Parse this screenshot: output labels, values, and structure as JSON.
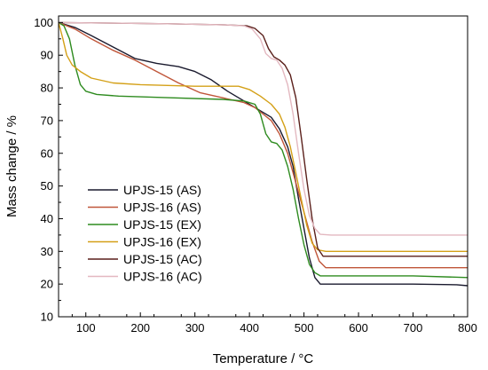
{
  "chart_data": {
    "type": "line",
    "title": "",
    "xlabel": "Temperature / °C",
    "ylabel": "Mass change / %",
    "xlim": [
      50,
      800
    ],
    "ylim": [
      10,
      102
    ],
    "xticks": [
      100,
      200,
      300,
      400,
      500,
      600,
      700,
      800
    ],
    "yticks": [
      10,
      20,
      30,
      40,
      50,
      60,
      70,
      80,
      90,
      100
    ],
    "grid": false,
    "legend_position": "lower-left",
    "series": [
      {
        "name": "UPJS-15 (AS)",
        "color": "#1a1a2e",
        "points": [
          [
            50,
            100
          ],
          [
            80,
            98.5
          ],
          [
            110,
            96
          ],
          [
            150,
            92.5
          ],
          [
            190,
            89
          ],
          [
            230,
            87.5
          ],
          [
            270,
            86.5
          ],
          [
            300,
            85
          ],
          [
            330,
            82.5
          ],
          [
            360,
            79
          ],
          [
            390,
            76
          ],
          [
            410,
            74
          ],
          [
            425,
            72.5
          ],
          [
            440,
            71
          ],
          [
            455,
            67.5
          ],
          [
            470,
            62
          ],
          [
            480,
            56
          ],
          [
            490,
            46
          ],
          [
            500,
            37
          ],
          [
            510,
            28
          ],
          [
            520,
            22
          ],
          [
            530,
            20
          ],
          [
            545,
            20
          ],
          [
            600,
            20
          ],
          [
            700,
            20
          ],
          [
            780,
            19.8
          ],
          [
            800,
            19.5
          ]
        ]
      },
      {
        "name": "UPJS-16 (AS)",
        "color": "#c0563a",
        "points": [
          [
            50,
            100
          ],
          [
            80,
            98
          ],
          [
            110,
            95
          ],
          [
            150,
            91.5
          ],
          [
            190,
            88.5
          ],
          [
            230,
            85
          ],
          [
            270,
            81.5
          ],
          [
            310,
            78.5
          ],
          [
            350,
            77
          ],
          [
            390,
            75.5
          ],
          [
            410,
            74
          ],
          [
            425,
            72
          ],
          [
            440,
            70
          ],
          [
            455,
            66
          ],
          [
            470,
            60
          ],
          [
            485,
            51
          ],
          [
            500,
            42
          ],
          [
            515,
            33
          ],
          [
            528,
            27
          ],
          [
            540,
            25
          ],
          [
            600,
            25
          ],
          [
            700,
            25
          ],
          [
            800,
            25
          ]
        ]
      },
      {
        "name": "UPJS-15 (EX)",
        "color": "#2e8b1f",
        "points": [
          [
            50,
            100
          ],
          [
            60,
            99
          ],
          [
            70,
            95
          ],
          [
            80,
            87
          ],
          [
            90,
            81
          ],
          [
            100,
            79
          ],
          [
            120,
            78
          ],
          [
            160,
            77.5
          ],
          [
            250,
            77
          ],
          [
            350,
            76.5
          ],
          [
            390,
            76
          ],
          [
            410,
            75
          ],
          [
            420,
            72
          ],
          [
            430,
            66
          ],
          [
            440,
            63.5
          ],
          [
            450,
            63
          ],
          [
            460,
            61
          ],
          [
            470,
            56
          ],
          [
            480,
            49
          ],
          [
            490,
            40
          ],
          [
            500,
            32
          ],
          [
            510,
            26
          ],
          [
            520,
            23.5
          ],
          [
            530,
            22.5
          ],
          [
            600,
            22.5
          ],
          [
            700,
            22.5
          ],
          [
            800,
            22
          ]
        ]
      },
      {
        "name": "UPJS-16 (EX)",
        "color": "#d4a017",
        "points": [
          [
            50,
            100
          ],
          [
            58,
            95
          ],
          [
            65,
            90
          ],
          [
            75,
            87
          ],
          [
            90,
            85
          ],
          [
            110,
            83
          ],
          [
            150,
            81.5
          ],
          [
            200,
            81
          ],
          [
            300,
            80.5
          ],
          [
            380,
            80.5
          ],
          [
            400,
            79.5
          ],
          [
            420,
            77.5
          ],
          [
            440,
            75
          ],
          [
            455,
            72
          ],
          [
            465,
            68
          ],
          [
            475,
            62
          ],
          [
            485,
            54
          ],
          [
            495,
            46
          ],
          [
            505,
            38
          ],
          [
            515,
            32.5
          ],
          [
            525,
            30.5
          ],
          [
            540,
            30
          ],
          [
            600,
            30
          ],
          [
            700,
            30
          ],
          [
            800,
            30
          ]
        ]
      },
      {
        "name": "UPJS-15 (AC)",
        "color": "#5a1f1a",
        "points": [
          [
            50,
            100
          ],
          [
            150,
            99.8
          ],
          [
            250,
            99.6
          ],
          [
            350,
            99.3
          ],
          [
            395,
            99
          ],
          [
            410,
            98.2
          ],
          [
            425,
            96
          ],
          [
            435,
            92
          ],
          [
            445,
            89.5
          ],
          [
            455,
            88.5
          ],
          [
            465,
            87
          ],
          [
            475,
            84
          ],
          [
            485,
            77
          ],
          [
            495,
            65
          ],
          [
            505,
            52
          ],
          [
            515,
            40
          ],
          [
            525,
            31
          ],
          [
            535,
            28.5
          ],
          [
            550,
            28.5
          ],
          [
            600,
            28.5
          ],
          [
            700,
            28.5
          ],
          [
            800,
            28.5
          ]
        ]
      },
      {
        "name": "UPJS-16 (AC)",
        "color": "#e3b8c0",
        "points": [
          [
            50,
            100
          ],
          [
            150,
            99.8
          ],
          [
            250,
            99.6
          ],
          [
            350,
            99.3
          ],
          [
            390,
            99
          ],
          [
            405,
            98
          ],
          [
            420,
            95
          ],
          [
            430,
            90.5
          ],
          [
            440,
            89
          ],
          [
            450,
            88.5
          ],
          [
            460,
            86
          ],
          [
            470,
            81
          ],
          [
            480,
            72
          ],
          [
            490,
            60
          ],
          [
            500,
            49
          ],
          [
            510,
            41
          ],
          [
            520,
            37
          ],
          [
            530,
            35.2
          ],
          [
            550,
            35
          ],
          [
            600,
            35
          ],
          [
            700,
            35
          ],
          [
            800,
            35
          ]
        ]
      }
    ]
  }
}
